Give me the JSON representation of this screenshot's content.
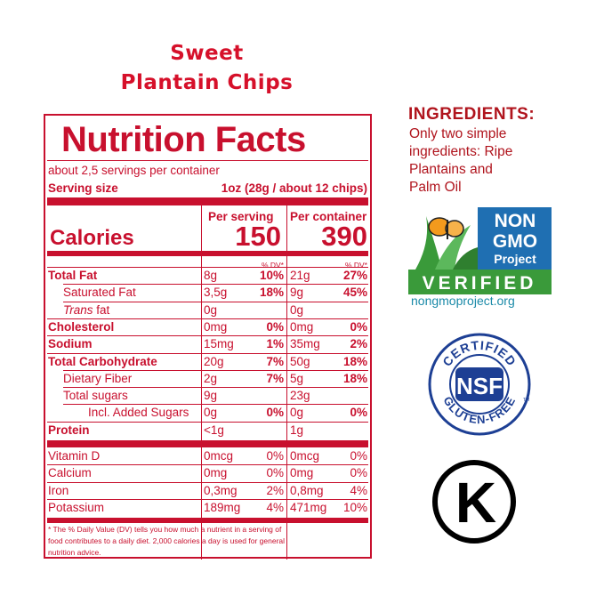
{
  "product": {
    "title_line1": "Sweet",
    "title_line2": "Plantain Chips"
  },
  "label": {
    "heading": "Nutrition Facts",
    "servings": "about 2,5 servings per container",
    "serving_size_label": "Serving size",
    "serving_size_value": "1oz (28g / about 12 chips)",
    "per_serving": "Per serving",
    "per_container": "Per container",
    "calories_label": "Calories",
    "calories_serving": "150",
    "calories_container": "390",
    "dv_header": "% DV*",
    "rows": [
      {
        "name": "Total Fat",
        "bold": true,
        "indent": 0,
        "s_amt": "8g",
        "s_dv": "10%",
        "c_amt": "21g",
        "c_dv": "27%"
      },
      {
        "name": "Saturated Fat",
        "bold": false,
        "indent": 1,
        "s_amt": "3,5g",
        "s_dv": "18%",
        "c_amt": "9g",
        "c_dv": "45%"
      },
      {
        "name_italic": "Trans",
        "name": " fat",
        "bold": false,
        "indent": 1,
        "s_amt": "0g",
        "s_dv": "",
        "c_amt": "0g",
        "c_dv": ""
      },
      {
        "name": "Cholesterol",
        "bold": true,
        "indent": 0,
        "s_amt": "0mg",
        "s_dv": "0%",
        "c_amt": "0mg",
        "c_dv": "0%"
      },
      {
        "name": "Sodium",
        "bold": true,
        "indent": 0,
        "s_amt": "15mg",
        "s_dv": "1%",
        "c_amt": "35mg",
        "c_dv": "2%"
      },
      {
        "name": "Total Carbohydrate",
        "bold": true,
        "indent": 0,
        "s_amt": "20g",
        "s_dv": "7%",
        "c_amt": "50g",
        "c_dv": "18%"
      },
      {
        "name": "Dietary Fiber",
        "bold": false,
        "indent": 1,
        "s_amt": "2g",
        "s_dv": "7%",
        "c_amt": "5g",
        "c_dv": "18%"
      },
      {
        "name": "Total sugars",
        "bold": false,
        "indent": 1,
        "s_amt": "9g",
        "s_dv": "",
        "c_amt": "23g",
        "c_dv": ""
      },
      {
        "name": "Incl. Added Sugars",
        "bold": false,
        "indent": 2,
        "s_amt": "0g",
        "s_dv": "0%",
        "c_amt": "0g",
        "c_dv": "0%"
      },
      {
        "name": "Protein",
        "bold": true,
        "indent": 0,
        "s_amt": "<1g",
        "s_dv": "",
        "c_amt": "1g",
        "c_dv": ""
      }
    ],
    "vitamins": [
      {
        "name": "Vitamin D",
        "s_amt": "0mcg",
        "s_dv": "0%",
        "c_amt": "0mcg",
        "c_dv": "0%"
      },
      {
        "name": "Calcium",
        "s_amt": "0mg",
        "s_dv": "0%",
        "c_amt": "0mg",
        "c_dv": "0%"
      },
      {
        "name": "Iron",
        "s_amt": "0,3mg",
        "s_dv": "2%",
        "c_amt": "0,8mg",
        "c_dv": "4%"
      },
      {
        "name": "Potassium",
        "s_amt": "189mg",
        "s_dv": "4%",
        "c_amt": "471mg",
        "c_dv": "10%"
      }
    ],
    "footnote_1": "* The % Daily Value (DV) tells you how much a nutrient in a serving of",
    "footnote_2": "food contributes to a daily diet. 2,000 calories a day is used for general",
    "footnote_3": "nutrition advice."
  },
  "ingredients": {
    "title": "INGREDIENTS:",
    "line1": "Only two simple",
    "line2": "ingredients: Ripe",
    "line3": "Plantains and",
    "line4": "Palm Oil"
  },
  "badges": {
    "nongmo_line1": "NON",
    "nongmo_line2": "GMO",
    "nongmo_line3": "Project",
    "nongmo_verified": "VERIFIED",
    "nongmo_url": "nongmoproject.org",
    "nsf_top": "CERTIFIED",
    "nsf_center": "NSF",
    "nsf_bottom": "GLUTEN-FREE",
    "nsf_tm": "TM",
    "kosher_letter": "K"
  },
  "colors": {
    "label_red": "#c8102e",
    "title_red": "#d6102a",
    "nsf_blue": "#1d3f94",
    "nongmo_blue": "#1f6fb2",
    "nongmo_green": "#3a9a3a"
  }
}
